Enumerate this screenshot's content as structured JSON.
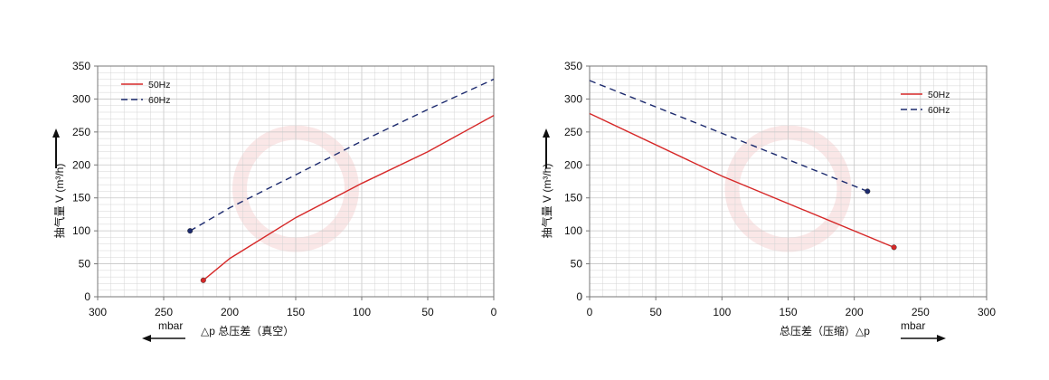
{
  "colors": {
    "series_50hz": "#d62828",
    "series_60hz": "#1c2a6e",
    "grid": "#d4d4d4",
    "axis": "#777777",
    "text": "#111111",
    "watermark": "#f3c9c9"
  },
  "chart_data": [
    {
      "type": "line",
      "grid": true,
      "legend_position": "top-left",
      "x_reversed": true,
      "xlim": [
        300,
        0
      ],
      "ylim": [
        0,
        350
      ],
      "x_ticks": [
        300,
        250,
        200,
        150,
        100,
        50,
        0
      ],
      "y_ticks": [
        0,
        50,
        100,
        150,
        200,
        250,
        300,
        350
      ],
      "ylabel": "抽气量 V (m³/h)",
      "xlabel": "△p  总压差（真空）",
      "x_unit": "mbar",
      "x_unit_direction": "left",
      "series": [
        {
          "name": "50Hz",
          "style": "solid",
          "points": [
            [
              220,
              25
            ],
            [
              200,
              58
            ],
            [
              150,
              120
            ],
            [
              100,
              172
            ],
            [
              50,
              220
            ],
            [
              0,
              275
            ]
          ]
        },
        {
          "name": "60Hz",
          "style": "dashed",
          "points": [
            [
              230,
              100
            ],
            [
              200,
              135
            ],
            [
              150,
              185
            ],
            [
              100,
              236
            ],
            [
              50,
              284
            ],
            [
              0,
              330
            ]
          ]
        }
      ]
    },
    {
      "type": "line",
      "grid": true,
      "legend_position": "top-right",
      "x_reversed": false,
      "xlim": [
        0,
        300
      ],
      "ylim": [
        0,
        350
      ],
      "x_ticks": [
        0,
        50,
        100,
        150,
        200,
        250,
        300
      ],
      "y_ticks": [
        0,
        50,
        100,
        150,
        200,
        250,
        300,
        350
      ],
      "ylabel": "抽气量 V (m³/h)",
      "xlabel": "总压差（压缩）△p",
      "x_unit": "mbar",
      "x_unit_direction": "right",
      "series": [
        {
          "name": "50Hz",
          "style": "solid",
          "points": [
            [
              0,
              278
            ],
            [
              100,
              183
            ],
            [
              230,
              75
            ]
          ]
        },
        {
          "name": "60Hz",
          "style": "dashed",
          "points": [
            [
              0,
              328
            ],
            [
              100,
              248
            ],
            [
              210,
              160
            ]
          ]
        }
      ]
    }
  ]
}
